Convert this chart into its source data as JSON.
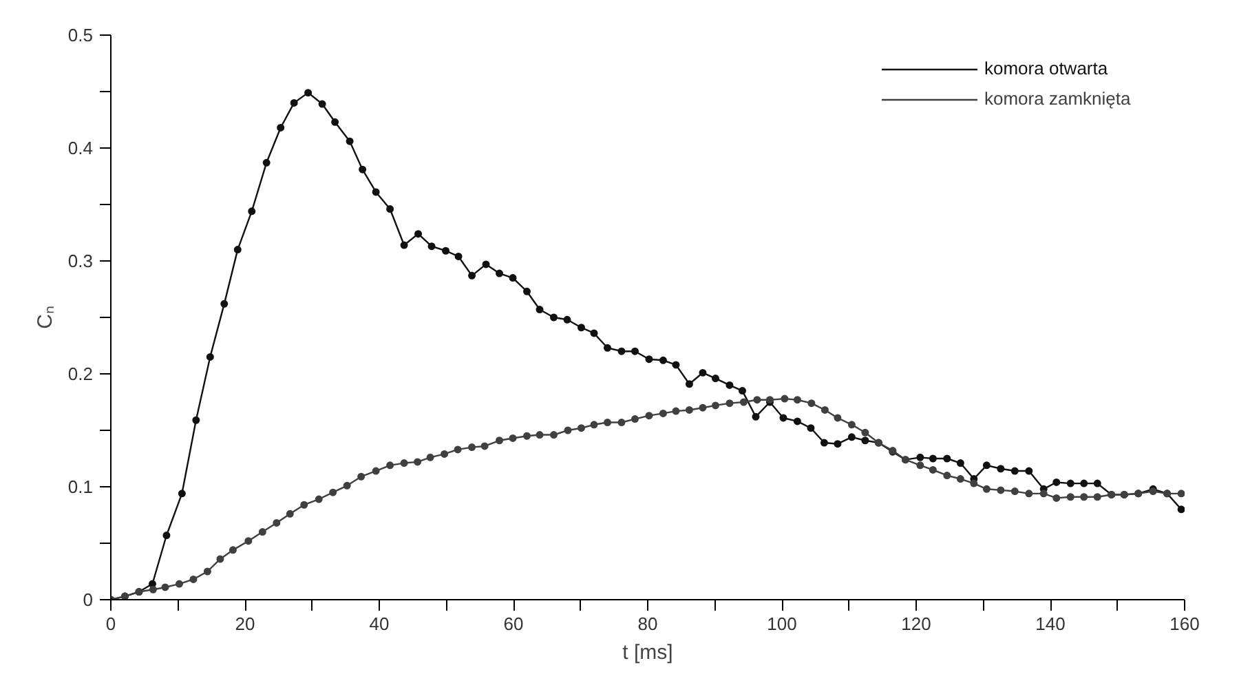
{
  "chart_data": {
    "type": "line",
    "xlabel": "t [ms]",
    "ylabel": "Cₙ",
    "xlim": [
      0,
      160
    ],
    "ylim": [
      0,
      0.5
    ],
    "xticks": [
      0,
      {
        "value": 10,
        "label": null
      },
      20,
      {
        "value": 30,
        "label": null
      },
      40,
      {
        "value": 50,
        "label": null
      },
      60,
      {
        "value": 70,
        "label": null
      },
      80,
      {
        "value": 90,
        "label": null
      },
      100,
      {
        "value": 110,
        "label": null
      },
      120,
      {
        "value": 130,
        "label": null
      },
      140,
      {
        "value": 150,
        "label": null
      },
      160
    ],
    "yticks": [
      0,
      {
        "value": 0.05,
        "label": null
      },
      0.1,
      {
        "value": 0.15,
        "label": null
      },
      0.2,
      {
        "value": 0.25,
        "label": null
      },
      0.3,
      {
        "value": 0.35,
        "label": null
      },
      0.4,
      {
        "value": 0.45,
        "label": null
      },
      0.5
    ],
    "grid": false,
    "legend": "top right",
    "marker": "circle",
    "line_style": "solid",
    "series": [
      {
        "name": "komora otwarta",
        "color": "#111111",
        "x": [
          0,
          2.1,
          4.2,
          6.2,
          8.3,
          10.6,
          12.7,
          14.8,
          16.9,
          18.9,
          21.0,
          23.2,
          25.3,
          27.3,
          29.4,
          31.5,
          33.4,
          35.6,
          37.5,
          39.5,
          41.6,
          43.7,
          45.8,
          47.8,
          49.9,
          51.8,
          53.8,
          55.9,
          57.9,
          59.9,
          62.0,
          63.9,
          66.0,
          68.0,
          70.1,
          72.0,
          74.0,
          76.1,
          78.1,
          80.2,
          82.3,
          84.2,
          86.2,
          88.2,
          90.1,
          92.2,
          94.1,
          96.1,
          98.2,
          100.2,
          102.3,
          104.3,
          106.3,
          108.3,
          110.4,
          112.4,
          114.4,
          116.5,
          118.4,
          120.6,
          122.5,
          124.6,
          126.6,
          128.6,
          130.5,
          132.6,
          134.7,
          136.8,
          139.0,
          140.9,
          143.0,
          145.0,
          147.0,
          149.1,
          151.0,
          153.1,
          155.3,
          157.4,
          159.5
        ],
        "values": [
          0,
          0.003,
          0.007,
          0.014,
          0.057,
          0.094,
          0.159,
          0.215,
          0.262,
          0.31,
          0.344,
          0.387,
          0.418,
          0.44,
          0.449,
          0.439,
          0.423,
          0.406,
          0.381,
          0.361,
          0.346,
          0.314,
          0.324,
          0.313,
          0.309,
          0.304,
          0.287,
          0.297,
          0.289,
          0.285,
          0.273,
          0.257,
          0.25,
          0.248,
          0.241,
          0.236,
          0.223,
          0.22,
          0.22,
          0.213,
          0.212,
          0.208,
          0.191,
          0.201,
          0.196,
          0.19,
          0.185,
          0.162,
          0.175,
          0.161,
          0.158,
          0.152,
          0.139,
          0.138,
          0.144,
          0.141,
          0.139,
          0.131,
          0.124,
          0.126,
          0.125,
          0.125,
          0.121,
          0.107,
          0.119,
          0.116,
          0.114,
          0.114,
          0.098,
          0.104,
          0.103,
          0.103,
          0.103,
          0.093,
          0.093,
          0.094,
          0.098,
          0.094,
          0.08
        ]
      },
      {
        "name": "komora zamknięta",
        "color": "#404040",
        "x": [
          0,
          2.1,
          4.2,
          6.3,
          8.1,
          10.2,
          12.3,
          14.4,
          16.3,
          18.2,
          20.5,
          22.6,
          24.7,
          26.7,
          28.8,
          31.0,
          33.1,
          35.2,
          37.3,
          39.5,
          41.6,
          43.7,
          45.7,
          47.6,
          49.7,
          51.7,
          53.8,
          55.7,
          57.9,
          59.9,
          62.0,
          63.9,
          66.0,
          68.1,
          70.1,
          72.0,
          74.0,
          76.1,
          78.1,
          80.2,
          82.3,
          84.2,
          86.2,
          88.2,
          90.1,
          92.2,
          94.3,
          96.3,
          98.2,
          100.4,
          102.3,
          104.4,
          106.4,
          108.3,
          110.4,
          112.4,
          114.4,
          116.5,
          118.4,
          120.6,
          122.5,
          124.6,
          126.6,
          128.6,
          130.5,
          132.6,
          134.7,
          136.8,
          139.0,
          140.9,
          143.0,
          145.0,
          147.0,
          149.1,
          151.0,
          153.1,
          155.3,
          157.4,
          159.5
        ],
        "values": [
          0,
          0.003,
          0.007,
          0.009,
          0.011,
          0.014,
          0.018,
          0.025,
          0.036,
          0.044,
          0.052,
          0.06,
          0.068,
          0.076,
          0.084,
          0.089,
          0.095,
          0.101,
          0.109,
          0.114,
          0.119,
          0.121,
          0.122,
          0.126,
          0.129,
          0.133,
          0.135,
          0.136,
          0.141,
          0.143,
          0.145,
          0.146,
          0.146,
          0.15,
          0.152,
          0.155,
          0.157,
          0.157,
          0.16,
          0.163,
          0.165,
          0.167,
          0.168,
          0.17,
          0.172,
          0.174,
          0.175,
          0.177,
          0.177,
          0.178,
          0.177,
          0.174,
          0.168,
          0.161,
          0.155,
          0.148,
          0.139,
          0.132,
          0.124,
          0.119,
          0.115,
          0.11,
          0.107,
          0.103,
          0.098,
          0.097,
          0.096,
          0.094,
          0.094,
          0.09,
          0.091,
          0.091,
          0.091,
          0.093,
          0.093,
          0.094,
          0.096,
          0.094,
          0.094
        ]
      }
    ]
  }
}
